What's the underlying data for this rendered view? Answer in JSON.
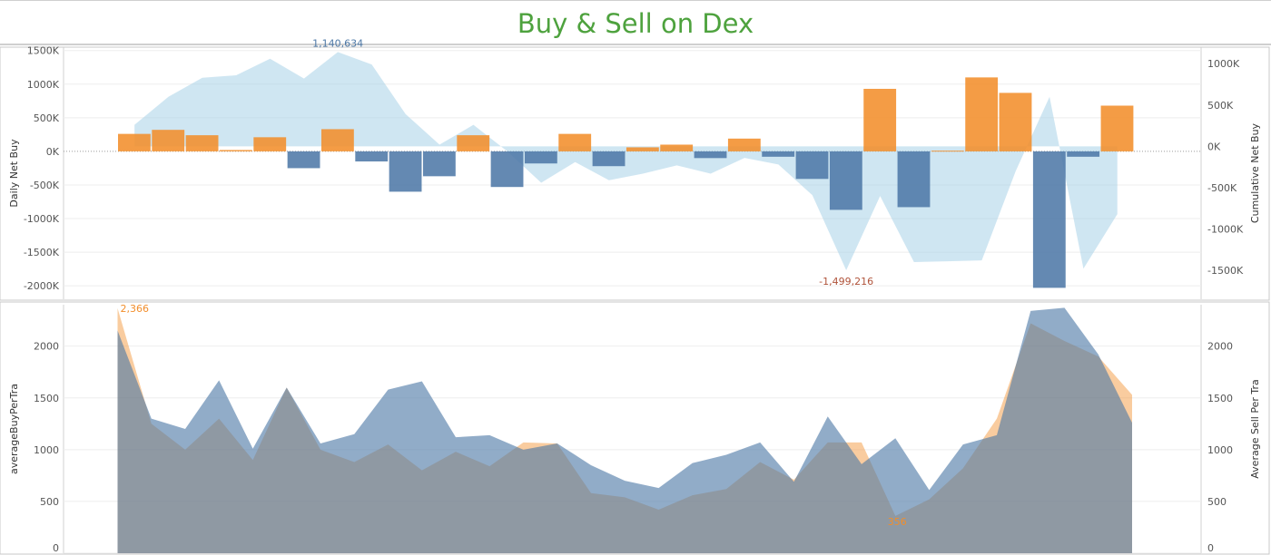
{
  "title": "Buy & Sell on Dex",
  "colors": {
    "buy": "#f28e2b",
    "sell": "#4e79a7",
    "cumulative": "#a8d1e7",
    "title": "#4ea23e",
    "min_label": "#b0533a"
  },
  "chart_data": [
    {
      "type": "bar",
      "name": "top-panel",
      "ylabel": "Daily Net Buy",
      "ylabel_right": "Cumulative Net Buy",
      "ylim": [
        -2200000,
        1550000
      ],
      "ylim_right": [
        -1850000,
        1200000
      ],
      "yticks": [
        1500000,
        1000000,
        500000,
        0,
        -500000,
        -1000000,
        -1500000,
        -2000000
      ],
      "ytick_labels": [
        "1500K",
        "1000K",
        "500K",
        "0K",
        "-500K",
        "-1000K",
        "-1500K",
        "-2000K"
      ],
      "yticks_right": [
        1000000,
        500000,
        0,
        -500000,
        -1000000,
        -1500000
      ],
      "ytick_labels_right": [
        "1000K",
        "500K",
        "0K",
        "-500K",
        "-1000K",
        "-1500K"
      ],
      "grid": true,
      "daily_net_buy": [
        260000,
        320000,
        240000,
        20000,
        210000,
        -250000,
        330000,
        -150000,
        -600000,
        -370000,
        240000,
        -530000,
        -180000,
        260000,
        -220000,
        60000,
        100000,
        -100000,
        190000,
        -80000,
        -410000,
        -870000,
        930000,
        -830000,
        10000,
        1100000,
        870000,
        -2030000,
        -80000,
        680000
      ],
      "cumulative_net_buy": [
        260000,
        600000,
        830000,
        860000,
        1060000,
        820000,
        1140634,
        990000,
        390000,
        20000,
        260000,
        -60000,
        -440000,
        -190000,
        -410000,
        -330000,
        -230000,
        -330000,
        -140000,
        -220000,
        -590000,
        -1499216,
        -600000,
        -1400000,
        -1390000,
        -1380000,
        -300000,
        600000,
        -1480000,
        -820000
      ],
      "annotations": {
        "max_label": "1,140,634",
        "min_label": "-1,499,216"
      }
    },
    {
      "type": "area",
      "name": "bottom-panel",
      "ylabel": "averageBuyPerTra",
      "ylabel_right": "Average Sell Per Tra",
      "ylim": [
        0,
        2400
      ],
      "ylim_right": [
        0,
        2400
      ],
      "yticks": [
        2000,
        1500,
        1000,
        500,
        0
      ],
      "ytick_labels": [
        "2000",
        "1500",
        "1000",
        "500",
        "0"
      ],
      "yticks_right": [
        2000,
        1500,
        1000,
        500,
        0
      ],
      "ytick_labels_right": [
        "2000",
        "1500",
        "1000",
        "500",
        "0"
      ],
      "series": [
        {
          "name": "averageBuyPerTra",
          "values": [
            2366,
            1250,
            1000,
            1300,
            900,
            1600,
            1000,
            880,
            1050,
            800,
            980,
            840,
            1070,
            1060,
            580,
            540,
            420,
            560,
            620,
            880,
            710,
            1070,
            1070,
            360,
            520,
            820,
            1300,
            2220,
            2050,
            1900,
            1530
          ]
        },
        {
          "name": "Average Sell Per Tra",
          "values": [
            2150,
            1300,
            1200,
            1670,
            1010,
            1600,
            1060,
            1150,
            1580,
            1660,
            1120,
            1140,
            1000,
            1060,
            850,
            700,
            630,
            870,
            950,
            1070,
            690,
            1320,
            860,
            1110,
            610,
            1050,
            1140,
            2340,
            2370,
            1920,
            1260
          ]
        }
      ],
      "annotations": {
        "max_label": "2,366",
        "min_label": "356"
      }
    }
  ]
}
